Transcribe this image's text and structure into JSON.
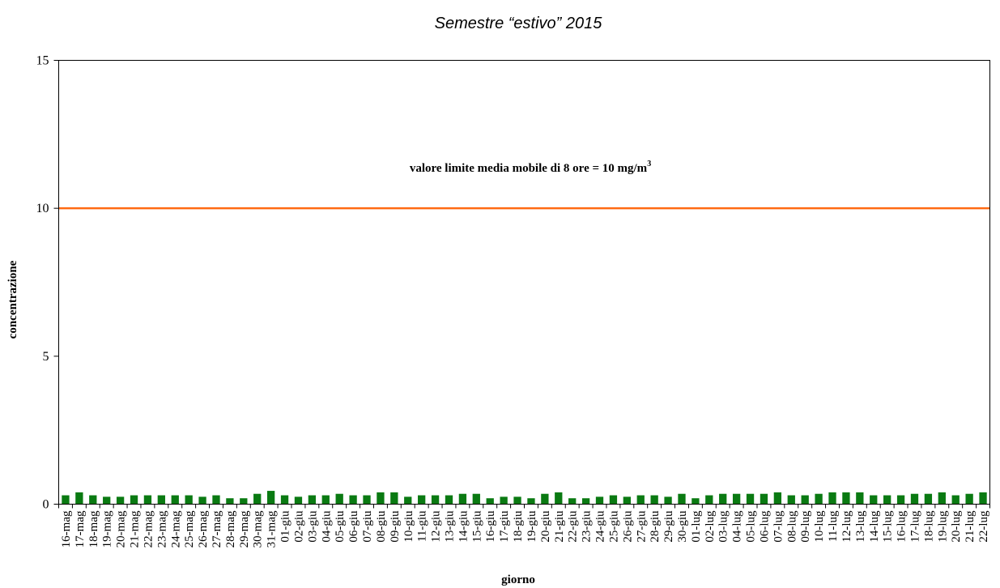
{
  "chart_data": {
    "type": "bar",
    "title": "Semestre “estivo” 2015",
    "xlabel": "giorno",
    "ylabel": "concentrazione",
    "ylim": [
      0,
      15
    ],
    "yticks": [
      "0",
      "5",
      "10",
      "15"
    ],
    "grid": false,
    "bar_color": "#0a7a12",
    "limit_color": "#ff6a13",
    "limit_value": 10,
    "annotation": {
      "text": "valore limite media mobile di 8 ore = 10 mg/m",
      "sup": "3"
    },
    "categories": [
      "16-mag",
      "17-mag",
      "18-mag",
      "19-mag",
      "20-mag",
      "21-mag",
      "22-mag",
      "23-mag",
      "24-mag",
      "25-mag",
      "26-mag",
      "27-mag",
      "28-mag",
      "29-mag",
      "30-mag",
      "31-mag",
      "01-giu",
      "02-giu",
      "03-giu",
      "04-giu",
      "05-giu",
      "06-giu",
      "07-giu",
      "08-giu",
      "09-giu",
      "10-giu",
      "11-giu",
      "12-giu",
      "13-giu",
      "14-giu",
      "15-giu",
      "16-giu",
      "17-giu",
      "18-giu",
      "19-giu",
      "20-giu",
      "21-giu",
      "22-giu",
      "23-giu",
      "24-giu",
      "25-giu",
      "26-giu",
      "27-giu",
      "28-giu",
      "29-giu",
      "30-giu",
      "01-lug",
      "02-lug",
      "03-lug",
      "04-lug",
      "05-lug",
      "06-lug",
      "07-lug",
      "08-lug",
      "09-lug",
      "10-lug",
      "11-lug",
      "12-lug",
      "13-lug",
      "14-lug",
      "15-lug",
      "16-lug",
      "17-lug",
      "18-lug",
      "19-lug",
      "20-lug",
      "21-lug",
      "22-lug"
    ],
    "values": [
      0.3,
      0.4,
      0.3,
      0.25,
      0.25,
      0.3,
      0.3,
      0.3,
      0.3,
      0.3,
      0.25,
      0.3,
      0.2,
      0.2,
      0.35,
      0.45,
      0.3,
      0.25,
      0.3,
      0.3,
      0.35,
      0.3,
      0.3,
      0.4,
      0.4,
      0.25,
      0.3,
      0.3,
      0.3,
      0.35,
      0.35,
      0.2,
      0.25,
      0.25,
      0.2,
      0.35,
      0.4,
      0.2,
      0.2,
      0.25,
      0.3,
      0.25,
      0.3,
      0.3,
      0.25,
      0.35,
      0.2,
      0.3,
      0.35,
      0.35,
      0.35,
      0.35,
      0.4,
      0.3,
      0.3,
      0.35,
      0.4,
      0.4,
      0.4,
      0.3,
      0.3,
      0.3,
      0.35,
      0.35,
      0.4,
      0.3,
      0.35,
      0.4
    ]
  }
}
